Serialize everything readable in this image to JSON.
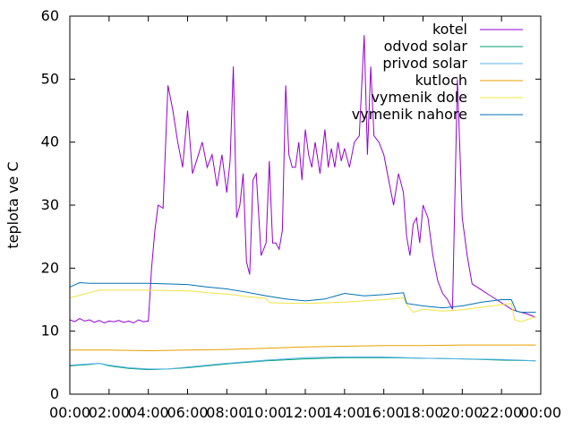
{
  "chart_data": {
    "type": "line",
    "ylabel": "teplota ve C",
    "ylim": [
      0,
      60
    ],
    "yticks": [
      0,
      10,
      20,
      30,
      40,
      50,
      60
    ],
    "xlim_hours": [
      0,
      24
    ],
    "xticks": [
      "00:00",
      "02:00",
      "04:00",
      "06:00",
      "08:00",
      "10:00",
      "12:00",
      "14:00",
      "16:00",
      "18:00",
      "20:00",
      "22:00",
      "00:00"
    ],
    "legend_position": "top-right",
    "series": [
      {
        "name": "kotel",
        "color": "#9400d3",
        "x": [
          "00:00",
          "00:15",
          "00:30",
          "00:45",
          "01:00",
          "01:15",
          "01:30",
          "01:45",
          "02:00",
          "02:15",
          "02:30",
          "02:45",
          "03:00",
          "03:15",
          "03:30",
          "03:45",
          "04:00",
          "04:10",
          "04:20",
          "04:30",
          "04:45",
          "05:00",
          "05:15",
          "05:30",
          "05:45",
          "06:00",
          "06:15",
          "06:30",
          "06:45",
          "07:00",
          "07:15",
          "07:30",
          "07:45",
          "08:00",
          "08:10",
          "08:20",
          "08:30",
          "08:40",
          "08:50",
          "09:00",
          "09:10",
          "09:20",
          "09:30",
          "09:45",
          "10:00",
          "10:10",
          "10:20",
          "10:30",
          "10:40",
          "10:50",
          "11:00",
          "11:10",
          "11:20",
          "11:30",
          "11:40",
          "11:50",
          "12:00",
          "12:10",
          "12:20",
          "12:30",
          "12:45",
          "13:00",
          "13:10",
          "13:20",
          "13:30",
          "13:40",
          "13:50",
          "14:00",
          "14:15",
          "14:30",
          "14:45",
          "15:00",
          "15:10",
          "15:20",
          "15:30",
          "15:45",
          "16:00",
          "16:15",
          "16:30",
          "16:45",
          "17:00",
          "17:10",
          "17:20",
          "17:30",
          "17:40",
          "17:50",
          "18:00",
          "18:15",
          "18:30",
          "18:45",
          "19:00",
          "19:15",
          "19:30",
          "19:45",
          "20:00",
          "20:15",
          "20:30",
          "20:45",
          "21:00",
          "21:15",
          "21:30",
          "21:45",
          "22:00",
          "22:15",
          "22:30",
          "22:45",
          "23:00",
          "23:15",
          "23:30",
          "23:45"
        ],
        "y": [
          11.8,
          11.5,
          12.0,
          11.6,
          11.8,
          11.4,
          11.7,
          11.3,
          11.6,
          11.5,
          11.7,
          11.4,
          11.6,
          11.3,
          11.8,
          11.5,
          11.6,
          20.0,
          26.0,
          30.0,
          29.5,
          49.0,
          45.0,
          40.0,
          36.0,
          45.0,
          35.0,
          37.5,
          40.0,
          36.0,
          38.0,
          33.0,
          38.0,
          32.0,
          37.0,
          52.0,
          28.0,
          30.0,
          35.0,
          21.0,
          19.0,
          34.0,
          35.0,
          22.0,
          24.0,
          37.0,
          24.0,
          24.0,
          23.0,
          26.0,
          49.0,
          38.0,
          36.0,
          36.0,
          40.0,
          34.0,
          42.0,
          38.0,
          36.0,
          40.0,
          35.0,
          42.0,
          36.0,
          39.0,
          36.0,
          40.0,
          37.0,
          39.0,
          36.0,
          40.0,
          41.0,
          57.0,
          38.0,
          52.0,
          41.0,
          40.0,
          38.0,
          34.0,
          30.0,
          35.0,
          32.0,
          25.0,
          22.0,
          27.0,
          28.0,
          24.0,
          30.0,
          28.0,
          22.0,
          18.0,
          16.0,
          15.0,
          13.5,
          50.0,
          28.0,
          22.0,
          17.5,
          17.0,
          16.5,
          16.0,
          15.5,
          15.0,
          14.5,
          14.0,
          13.5,
          13.2,
          13.0,
          12.8,
          12.5,
          12.2
        ]
      },
      {
        "name": "odvod solar",
        "color": "#009e73",
        "x": [
          "00:00",
          "01:00",
          "01:30",
          "02:00",
          "03:00",
          "04:00",
          "05:00",
          "06:00",
          "08:00",
          "10:00",
          "12:00",
          "14:00",
          "16:00",
          "18:00",
          "20:00",
          "22:00",
          "23:45"
        ],
        "y": [
          4.5,
          4.7,
          4.9,
          4.5,
          4.1,
          3.9,
          4.0,
          4.2,
          4.8,
          5.3,
          5.6,
          5.8,
          5.8,
          5.7,
          5.6,
          5.4,
          5.3
        ]
      },
      {
        "name": "privod solar",
        "color": "#56b4e9",
        "x": [
          "00:00",
          "01:00",
          "01:30",
          "02:00",
          "03:00",
          "04:00",
          "05:00",
          "06:00",
          "08:00",
          "10:00",
          "12:00",
          "14:00",
          "16:00",
          "18:00",
          "20:00",
          "22:00",
          "23:45"
        ],
        "y": [
          4.6,
          4.8,
          4.9,
          4.6,
          4.2,
          4.0,
          4.0,
          4.3,
          4.9,
          5.4,
          5.8,
          5.9,
          5.9,
          5.7,
          5.6,
          5.5,
          5.3
        ]
      },
      {
        "name": "kutloch",
        "color": "#e69f00",
        "x": [
          "00:00",
          "02:00",
          "04:00",
          "06:00",
          "08:00",
          "10:00",
          "12:00",
          "14:00",
          "16:00",
          "18:00",
          "20:00",
          "22:00",
          "23:45"
        ],
        "y": [
          7.0,
          7.0,
          6.9,
          7.0,
          7.1,
          7.3,
          7.5,
          7.6,
          7.7,
          7.7,
          7.8,
          7.8,
          7.8
        ]
      },
      {
        "name": "vymenik dole",
        "color": "#f0e442",
        "x": [
          "00:00",
          "00:30",
          "01:00",
          "01:30",
          "02:00",
          "04:00",
          "06:00",
          "06:30",
          "07:00",
          "08:00",
          "09:00",
          "10:00",
          "10:10",
          "12:00",
          "14:00",
          "16:00",
          "17:00",
          "17:10",
          "17:30",
          "18:00",
          "19:00",
          "20:00",
          "21:00",
          "22:00",
          "22:30",
          "22:40",
          "23:00",
          "23:45"
        ],
        "y": [
          15.3,
          15.7,
          16.1,
          16.5,
          16.5,
          16.5,
          16.4,
          16.3,
          16.1,
          15.9,
          15.5,
          15.2,
          14.5,
          14.4,
          14.6,
          15.0,
          15.3,
          14.2,
          13.0,
          13.5,
          13.2,
          13.4,
          13.8,
          14.2,
          14.4,
          11.8,
          11.5,
          12.3
        ]
      },
      {
        "name": "vymenik nahore",
        "color": "#0072b2",
        "x": [
          "00:00",
          "00:30",
          "01:00",
          "02:00",
          "04:00",
          "06:00",
          "07:00",
          "08:00",
          "09:00",
          "10:00",
          "11:00",
          "12:00",
          "13:00",
          "14:00",
          "15:00",
          "16:00",
          "17:00",
          "17:10",
          "18:00",
          "19:00",
          "20:00",
          "21:00",
          "22:00",
          "22:30",
          "22:45",
          "23:00",
          "23:45"
        ],
        "y": [
          17.0,
          17.7,
          17.6,
          17.6,
          17.6,
          17.4,
          17.0,
          16.7,
          16.2,
          15.6,
          15.1,
          14.8,
          15.1,
          16.0,
          15.6,
          15.8,
          16.1,
          14.4,
          14.0,
          13.7,
          14.0,
          14.6,
          15.0,
          15.0,
          13.2,
          13.0,
          13.0
        ]
      }
    ]
  }
}
